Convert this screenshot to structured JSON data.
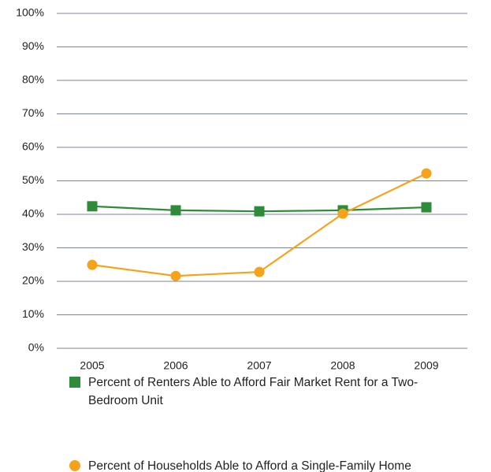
{
  "chart_data": {
    "type": "line",
    "categories": [
      "2005",
      "2006",
      "2007",
      "2008",
      "2009"
    ],
    "series": [
      {
        "name": "Percent of Renters Able to Afford Fair Market Rent for a Two-Bedroom Unit",
        "color": "#2e8b3a",
        "marker": "square",
        "values": [
          42.4,
          41.2,
          40.9,
          41.2,
          42.1
        ]
      },
      {
        "name": "Percent of Households Able to Afford a Single-Family Home",
        "color": "#f5a31a",
        "marker": "circle",
        "values": [
          24.9,
          21.6,
          22.8,
          40.2,
          52.2
        ]
      }
    ],
    "ylim": [
      0,
      100
    ],
    "yticks": [
      {
        "value": 0,
        "label": "0%"
      },
      {
        "value": 10,
        "label": "10%"
      },
      {
        "value": 20,
        "label": "20%"
      },
      {
        "value": 30,
        "label": "30%"
      },
      {
        "value": 40,
        "label": "40%"
      },
      {
        "value": 50,
        "label": "50%"
      },
      {
        "value": 60,
        "label": "60%"
      },
      {
        "value": 70,
        "label": "70%"
      },
      {
        "value": 80,
        "label": "80%"
      },
      {
        "value": 90,
        "label": "90%"
      },
      {
        "value": 100,
        "label": "100%"
      }
    ],
    "grid": true
  }
}
